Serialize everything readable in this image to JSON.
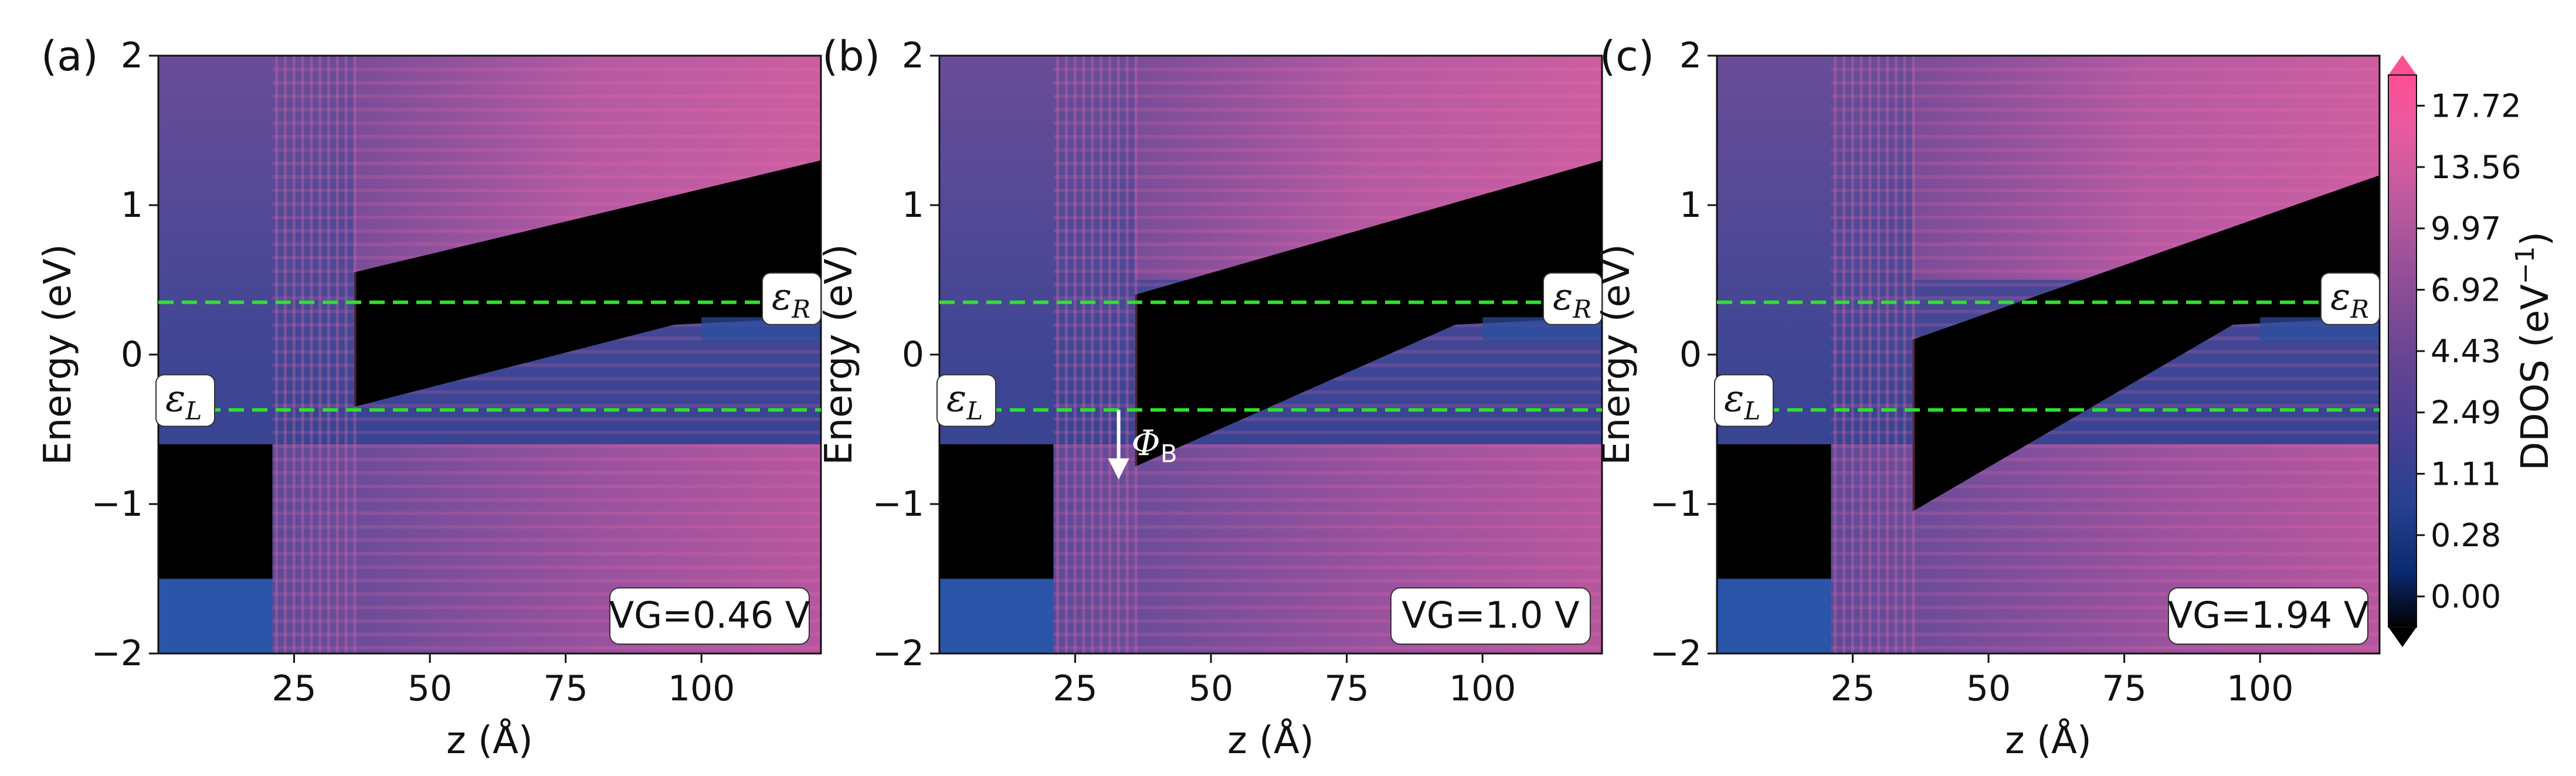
{
  "chart_data": [
    {
      "type": "heatmap",
      "panel_label": "(a)",
      "xlabel": "z (Å)",
      "ylabel": "Energy (eV)",
      "xlim": [
        0,
        122
      ],
      "ylim": [
        -2,
        2
      ],
      "x_ticks": [
        25,
        50,
        75,
        100
      ],
      "y_ticks": [
        -2,
        -1,
        0,
        1,
        2
      ],
      "fermi_levels": {
        "left": {
          "label": "ε",
          "subscript": "L",
          "energy": -0.37
        },
        "right": {
          "label": "ε",
          "subscript": "R",
          "energy": 0.35
        }
      },
      "gate_voltage_label": "VG=0.46 V",
      "gap_region": {
        "band_top_start": 0.55,
        "band_top_end": 1.3,
        "band_bottom_start": -0.35,
        "band_bottom_end": 0.25
      },
      "barrier": null
    },
    {
      "type": "heatmap",
      "panel_label": "(b)",
      "xlabel": "z (Å)",
      "ylabel": "Energy (eV)",
      "xlim": [
        0,
        122
      ],
      "ylim": [
        -2,
        2
      ],
      "x_ticks": [
        25,
        50,
        75,
        100
      ],
      "y_ticks": [
        -2,
        -1,
        0,
        1,
        2
      ],
      "fermi_levels": {
        "left": {
          "label": "ε",
          "subscript": "L",
          "energy": -0.37
        },
        "right": {
          "label": "ε",
          "subscript": "R",
          "energy": 0.35
        }
      },
      "gate_voltage_label": "VG=1.0 V",
      "gap_region": {
        "band_top_start": 0.4,
        "band_top_end": 1.3,
        "band_bottom_start": -0.75,
        "band_bottom_end": 0.25
      },
      "barrier": {
        "label": "Φ",
        "subscript": "B",
        "from_energy": -0.37,
        "to_energy": -0.82
      }
    },
    {
      "type": "heatmap",
      "panel_label": "(c)",
      "xlabel": "z (Å)",
      "ylabel": "Energy (eV)",
      "xlim": [
        0,
        122
      ],
      "ylim": [
        -2,
        2
      ],
      "x_ticks": [
        25,
        50,
        75,
        100
      ],
      "y_ticks": [
        -2,
        -1,
        0,
        1,
        2
      ],
      "fermi_levels": {
        "left": {
          "label": "ε",
          "subscript": "L",
          "energy": -0.37
        },
        "right": {
          "label": "ε",
          "subscript": "R",
          "energy": 0.35
        }
      },
      "gate_voltage_label": "VG=1.94 V",
      "gap_region": {
        "band_top_start": 0.1,
        "band_top_end": 1.2,
        "band_bottom_start": -1.05,
        "band_bottom_end": 0.25
      },
      "barrier": null
    }
  ],
  "colorbar": {
    "label": "DDOS (eV",
    "label_exponent": "−1",
    "label_close": ")",
    "ticks": [
      "0.00",
      "0.28",
      "1.11",
      "2.49",
      "4.43",
      "6.92",
      "9.97",
      "13.56",
      "17.72"
    ],
    "colors": [
      "#000000",
      "#0a2a6e",
      "#26408f",
      "#4a3f95",
      "#6a4592",
      "#944f98",
      "#c05a9e",
      "#e85aa0",
      "#ff4f95"
    ]
  }
}
